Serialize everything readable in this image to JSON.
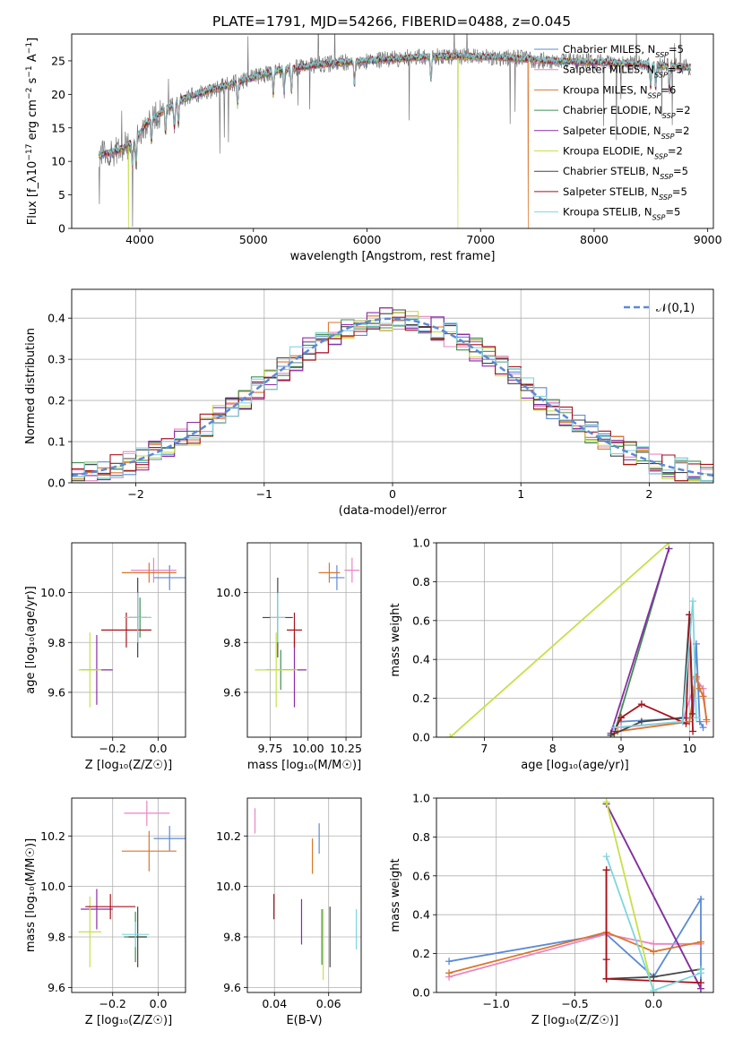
{
  "figure_title": "PLATE=1791, MJD=54266, FIBERID=0488, z=0.045",
  "models": [
    {
      "name": "Chabrier MILES, N_SSP=5",
      "imf": "Chabrier",
      "lib": "MILES",
      "n": "5",
      "color": "#5b8ad6"
    },
    {
      "name": "Salpeter MILES, N_SSP=5",
      "imf": "Salpeter",
      "lib": "MILES",
      "n": "5",
      "color": "#e986c4"
    },
    {
      "name": "Kroupa MILES, N_SSP=6",
      "imf": "Kroupa",
      "lib": "MILES",
      "n": "6",
      "color": "#d9762b"
    },
    {
      "name": "Chabrier ELODIE, N_SSP=2",
      "imf": "Chabrier",
      "lib": "ELODIE",
      "n": "2",
      "color": "#3f8f4f"
    },
    {
      "name": "Salpeter ELODIE, N_SSP=2",
      "imf": "Salpeter",
      "lib": "ELODIE",
      "n": "2",
      "color": "#8a2ca8"
    },
    {
      "name": "Kroupa ELODIE, N_SSP=2",
      "imf": "Kroupa",
      "lib": "ELODIE",
      "n": "2",
      "color": "#c6e04a"
    },
    {
      "name": "Chabrier STELIB, N_SSP=5",
      "imf": "Chabrier",
      "lib": "STELIB",
      "n": "5",
      "color": "#444444"
    },
    {
      "name": "Salpeter STELIB, N_SSP=5",
      "imf": "Salpeter",
      "lib": "STELIB",
      "n": "5",
      "color": "#a8121a"
    },
    {
      "name": "Kroupa STELIB, N_SSP=5",
      "imf": "Kroupa",
      "lib": "STELIB",
      "n": "5",
      "color": "#7ed6e0"
    }
  ],
  "chart_data": [
    {
      "id": "spectrum",
      "type": "line",
      "xlabel": "wavelength [Angstrom, rest frame]",
      "ylabel": "Flux [f_λ10^-17 erg cm^-2 s^-1 A^-1]",
      "xlim": [
        3400,
        9050
      ],
      "ylim": [
        0,
        29
      ],
      "xticks": [
        4000,
        5000,
        6000,
        7000,
        8000,
        9000
      ],
      "yticks": [
        0,
        5,
        10,
        15,
        20,
        25
      ],
      "legend_position": "top-right",
      "data_color": "#777777",
      "data_wavelength_range": [
        3640,
        8850
      ],
      "continuum": [
        [
          3640,
          11
        ],
        [
          3800,
          11.5
        ],
        [
          3950,
          13
        ],
        [
          4050,
          15.5
        ],
        [
          4200,
          17.5
        ],
        [
          4400,
          19.5
        ],
        [
          4600,
          20.5
        ],
        [
          4900,
          22
        ],
        [
          5200,
          23.5
        ],
        [
          5600,
          24.5
        ],
        [
          6000,
          25
        ],
        [
          6400,
          25.5
        ],
        [
          6800,
          25.7
        ],
        [
          7200,
          25.5
        ],
        [
          7600,
          25
        ],
        [
          8000,
          24.8
        ],
        [
          8400,
          24.5
        ],
        [
          8850,
          24
        ]
      ],
      "dropouts": [
        {
          "model": "Kroupa ELODIE, N_SSP=2",
          "x": 3900
        },
        {
          "model": "Kroupa ELODIE, N_SSP=2",
          "x": 6800
        },
        {
          "model": "Kroupa MILES, N_SSP=6",
          "x": 7420
        }
      ],
      "grid": false
    },
    {
      "id": "residuals",
      "type": "step",
      "xlabel": "(data-model)/error",
      "ylabel": "Normed distribution",
      "xlim": [
        -2.5,
        2.5
      ],
      "ylim": [
        0,
        0.47
      ],
      "xticks": [
        -2,
        -1,
        0,
        1,
        2
      ],
      "yticks": [
        0.0,
        0.1,
        0.2,
        0.3,
        0.4
      ],
      "reference_curve": {
        "label": "𝒩(0,1)",
        "mean": 0,
        "sigma": 1,
        "color": "#5b8ad6"
      },
      "bin_width": 0.1,
      "legend_position": "top-right",
      "grid": true
    },
    {
      "id": "age_vs_Z",
      "type": "errorbar",
      "xlabel": "Z [log₁₀(Z/Z☉)]",
      "ylabel": "age  [log₁₀(age/yr)]",
      "xlim": [
        -0.38,
        0.12
      ],
      "ylim": [
        9.42,
        10.2
      ],
      "xticks": [
        -0.2,
        0.0
      ],
      "yticks": [
        9.6,
        9.8,
        10.0
      ],
      "points": [
        {
          "model": 0,
          "x": 0.05,
          "y": 10.06,
          "xerr": 0.07,
          "yerr": 0.05
        },
        {
          "model": 1,
          "x": -0.02,
          "y": 10.09,
          "xerr": 0.1,
          "yerr": 0.05
        },
        {
          "model": 2,
          "x": -0.04,
          "y": 10.08,
          "xerr": 0.12,
          "yerr": 0.04
        },
        {
          "model": 3,
          "x": -0.08,
          "y": 9.9,
          "xerr": 0.05,
          "yerr": 0.08
        },
        {
          "model": 4,
          "x": -0.27,
          "y": 9.69,
          "xerr": 0.07,
          "yerr": 0.14
        },
        {
          "model": 5,
          "x": -0.3,
          "y": 9.69,
          "xerr": 0.05,
          "yerr": 0.15
        },
        {
          "model": 6,
          "x": -0.09,
          "y": 9.9,
          "xerr": 0.04,
          "yerr": 0.16
        },
        {
          "model": 7,
          "x": -0.14,
          "y": 9.85,
          "xerr": 0.11,
          "yerr": 0.07
        },
        {
          "model": 8,
          "x": -0.09,
          "y": 9.9,
          "xerr": 0.06,
          "yerr": 0.1
        }
      ],
      "grid": true
    },
    {
      "id": "age_vs_mass",
      "type": "errorbar",
      "xlabel": "mass [log₁₀(M/M☉)]",
      "ylabel": "",
      "xlim": [
        9.6,
        10.35
      ],
      "ylim": [
        9.42,
        10.2
      ],
      "xticks": [
        9.75,
        10.0,
        10.25
      ],
      "yticks": [
        9.6,
        9.8,
        10.0
      ],
      "points": [
        {
          "model": 0,
          "x": 10.19,
          "y": 10.06,
          "xerr": 0.05,
          "yerr": 0.05
        },
        {
          "model": 1,
          "x": 10.29,
          "y": 10.09,
          "xerr": 0.05,
          "yerr": 0.05
        },
        {
          "model": 2,
          "x": 10.14,
          "y": 10.08,
          "xerr": 0.07,
          "yerr": 0.04
        },
        {
          "model": 3,
          "x": 9.82,
          "y": 9.69,
          "xerr": 0.1,
          "yerr": 0.08
        },
        {
          "model": 4,
          "x": 9.91,
          "y": 9.69,
          "xerr": 0.08,
          "yerr": 0.15
        },
        {
          "model": 5,
          "x": 9.79,
          "y": 9.69,
          "xerr": 0.14,
          "yerr": 0.15
        },
        {
          "model": 6,
          "x": 9.8,
          "y": 9.9,
          "xerr": 0.1,
          "yerr": 0.16
        },
        {
          "model": 7,
          "x": 9.91,
          "y": 9.85,
          "xerr": 0.05,
          "yerr": 0.07
        },
        {
          "model": 8,
          "x": 9.8,
          "y": 9.9,
          "xerr": 0.05,
          "yerr": 0.1
        }
      ],
      "grid": true
    },
    {
      "id": "weight_vs_age",
      "type": "line",
      "xlabel": "age  [log₁₀(age/yr)]",
      "ylabel": "mass weight",
      "xlim": [
        6.3,
        10.35
      ],
      "ylim": [
        0,
        1.0
      ],
      "xticks": [
        7,
        8,
        9,
        10
      ],
      "yticks": [
        0.0,
        0.2,
        0.4,
        0.6,
        0.8,
        1.0
      ],
      "series": [
        {
          "model": 0,
          "x": [
            9.0,
            10.05,
            10.1,
            10.15,
            10.2
          ],
          "y": [
            0.08,
            0.1,
            0.48,
            0.08,
            0.05
          ]
        },
        {
          "model": 1,
          "x": [
            9.0,
            9.9,
            10.1,
            10.2,
            10.25
          ],
          "y": [
            0.05,
            0.08,
            0.3,
            0.25,
            0.08
          ]
        },
        {
          "model": 2,
          "x": [
            8.95,
            10.0,
            10.1,
            10.15,
            10.2,
            10.25
          ],
          "y": [
            0.03,
            0.08,
            0.31,
            0.25,
            0.21,
            0.09
          ]
        },
        {
          "model": 3,
          "x": [
            8.9,
            9.7
          ],
          "y": [
            0.02,
            0.97
          ]
        },
        {
          "model": 4,
          "x": [
            8.85,
            9.7
          ],
          "y": [
            0.02,
            0.97
          ]
        },
        {
          "model": 5,
          "x": [
            6.5,
            9.7
          ],
          "y": [
            0.0,
            1.0
          ]
        },
        {
          "model": 6,
          "x": [
            8.85,
            9.3,
            9.9,
            10.0,
            10.05
          ],
          "y": [
            0.01,
            0.08,
            0.1,
            0.63,
            0.12
          ]
        },
        {
          "model": 7,
          "x": [
            8.9,
            9.0,
            9.3,
            9.95,
            10.0,
            10.05
          ],
          "y": [
            0.03,
            0.1,
            0.17,
            0.07,
            0.63,
            0.03
          ]
        },
        {
          "model": 8,
          "x": [
            8.9,
            9.9,
            10.05,
            10.1
          ],
          "y": [
            0.05,
            0.08,
            0.7,
            0.1
          ]
        }
      ],
      "grid": true
    },
    {
      "id": "mass_vs_Z",
      "type": "errorbar",
      "xlabel": "Z [log₁₀(Z/Z☉)]",
      "ylabel": "mass [log₁₀(M/M☉)]",
      "xlim": [
        -0.38,
        0.12
      ],
      "ylim": [
        9.58,
        10.35
      ],
      "xticks": [
        -0.2,
        0.0
      ],
      "yticks": [
        9.6,
        9.8,
        10.0,
        10.2
      ],
      "points": [
        {
          "model": 0,
          "x": 0.05,
          "y": 10.19,
          "xerr": 0.07,
          "yerr": 0.05
        },
        {
          "model": 1,
          "x": -0.05,
          "y": 10.29,
          "xerr": 0.1,
          "yerr": 0.05
        },
        {
          "model": 2,
          "x": -0.04,
          "y": 10.14,
          "xerr": 0.12,
          "yerr": 0.08
        },
        {
          "model": 3,
          "x": -0.1,
          "y": 9.8,
          "xerr": 0.05,
          "yerr": 0.1
        },
        {
          "model": 4,
          "x": -0.27,
          "y": 9.91,
          "xerr": 0.07,
          "yerr": 0.08
        },
        {
          "model": 5,
          "x": -0.3,
          "y": 9.82,
          "xerr": 0.05,
          "yerr": 0.14
        },
        {
          "model": 6,
          "x": -0.09,
          "y": 9.8,
          "xerr": 0.04,
          "yerr": 0.12
        },
        {
          "model": 7,
          "x": -0.21,
          "y": 9.92,
          "xerr": 0.11,
          "yerr": 0.05
        },
        {
          "model": 8,
          "x": -0.1,
          "y": 9.81,
          "xerr": 0.06,
          "yerr": 0.05
        }
      ],
      "grid": true
    },
    {
      "id": "mass_vs_ebv",
      "type": "errorbar",
      "xlabel": "E(B-V)",
      "ylabel": "",
      "xlim": [
        0.03,
        0.072
      ],
      "ylim": [
        9.58,
        10.35
      ],
      "xticks": [
        0.04,
        0.06
      ],
      "yticks": [
        9.6,
        9.8,
        10.0,
        10.2
      ],
      "points": [
        {
          "model": 0,
          "x": 0.0565,
          "y": 10.19,
          "xerr": 0,
          "yerr": 0.06
        },
        {
          "model": 1,
          "x": 0.0328,
          "y": 10.26,
          "xerr": 0,
          "yerr": 0.05
        },
        {
          "model": 2,
          "x": 0.054,
          "y": 10.12,
          "xerr": 0,
          "yerr": 0.07
        },
        {
          "model": 3,
          "x": 0.0575,
          "y": 9.8,
          "xerr": 0,
          "yerr": 0.11
        },
        {
          "model": 4,
          "x": 0.05,
          "y": 9.86,
          "xerr": 0,
          "yerr": 0.09
        },
        {
          "model": 5,
          "x": 0.058,
          "y": 9.77,
          "xerr": 0,
          "yerr": 0.14
        },
        {
          "model": 6,
          "x": 0.0605,
          "y": 9.8,
          "xerr": 0,
          "yerr": 0.12
        },
        {
          "model": 7,
          "x": 0.0398,
          "y": 9.92,
          "xerr": 0,
          "yerr": 0.05
        },
        {
          "model": 8,
          "x": 0.0702,
          "y": 9.83,
          "xerr": 0,
          "yerr": 0.08
        }
      ],
      "grid": true
    },
    {
      "id": "weight_vs_Z",
      "type": "line",
      "xlabel": "Z [log₁₀(Z/Z☉)]",
      "ylabel": "mass weight",
      "xlim": [
        -1.38,
        0.38
      ],
      "ylim": [
        0,
        1.0
      ],
      "xticks": [
        -1.0,
        -0.5,
        0.0
      ],
      "yticks": [
        0.0,
        0.2,
        0.4,
        0.6,
        0.8,
        1.0
      ],
      "series": [
        {
          "model": 0,
          "x": [
            -1.3,
            -0.3,
            0.0,
            0.3,
            0.3
          ],
          "y": [
            0.16,
            0.3,
            0.08,
            0.48,
            0.05
          ]
        },
        {
          "model": 1,
          "x": [
            -1.3,
            -0.3,
            0.0,
            0.3
          ],
          "y": [
            0.08,
            0.3,
            0.25,
            0.25
          ]
        },
        {
          "model": 2,
          "x": [
            -1.3,
            -0.3,
            0.0,
            0.3
          ],
          "y": [
            0.1,
            0.31,
            0.21,
            0.26
          ]
        },
        {
          "model": 3,
          "x": [
            -0.3,
            0.3
          ],
          "y": [
            0.97,
            0.02
          ]
        },
        {
          "model": 4,
          "x": [
            -0.3,
            0.3
          ],
          "y": [
            0.97,
            0.02
          ]
        },
        {
          "model": 5,
          "x": [
            -0.3,
            0.0
          ],
          "y": [
            0.98,
            0.0
          ]
        },
        {
          "model": 6,
          "x": [
            -0.3,
            -0.3,
            0.0,
            0.3
          ],
          "y": [
            0.63,
            0.07,
            0.08,
            0.12
          ]
        },
        {
          "model": 7,
          "x": [
            -0.3,
            -0.3,
            -0.3,
            0.3
          ],
          "y": [
            0.63,
            0.17,
            0.07,
            0.05
          ]
        },
        {
          "model": 8,
          "x": [
            -0.3,
            0.0,
            0.3,
            0.3
          ],
          "y": [
            0.7,
            0.01,
            0.1,
            0.12
          ]
        }
      ],
      "grid": true
    }
  ]
}
